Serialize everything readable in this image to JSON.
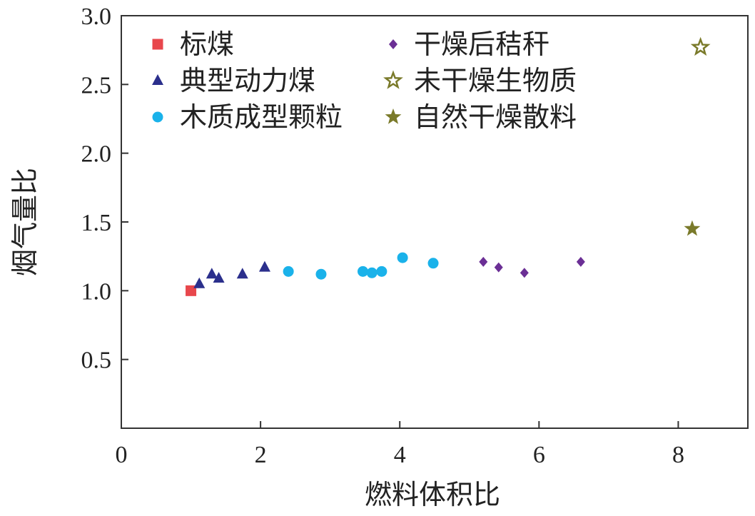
{
  "chart_data": {
    "type": "scatter",
    "xlabel": "燃料体积比",
    "ylabel": "烟气量比",
    "xlim": [
      0,
      9
    ],
    "ylim": [
      0,
      3.0
    ],
    "xticks": [
      "0",
      "2",
      "4",
      "6",
      "8"
    ],
    "xtick_values": [
      0,
      2,
      4,
      6,
      8
    ],
    "yticks": [
      "0.5",
      "1.0",
      "1.5",
      "2.0",
      "2.5",
      "3.0"
    ],
    "ytick_values": [
      0.5,
      1.0,
      1.5,
      2.0,
      2.5,
      3.0
    ],
    "grid": false,
    "legend_position": "top-left (two columns)",
    "series": [
      {
        "name": "标煤",
        "marker": "square",
        "color": "#e8474c",
        "points": [
          [
            1.0,
            1.0
          ]
        ]
      },
      {
        "name": "典型动力煤",
        "marker": "triangle",
        "color": "#2b2f8c",
        "points": [
          [
            1.12,
            1.05
          ],
          [
            1.3,
            1.12
          ],
          [
            1.4,
            1.09
          ],
          [
            1.74,
            1.12
          ],
          [
            2.06,
            1.17
          ]
        ]
      },
      {
        "name": "木质成型颗粒",
        "marker": "circle",
        "color": "#1ab2ea",
        "points": [
          [
            2.4,
            1.14
          ],
          [
            2.87,
            1.12
          ],
          [
            3.47,
            1.14
          ],
          [
            3.6,
            1.13
          ],
          [
            3.74,
            1.14
          ],
          [
            4.04,
            1.24
          ],
          [
            4.48,
            1.2
          ]
        ]
      },
      {
        "name": "干燥后秸秆",
        "marker": "diamond",
        "color": "#6b2f95",
        "points": [
          [
            5.2,
            1.21
          ],
          [
            5.42,
            1.17
          ],
          [
            5.79,
            1.13
          ],
          [
            6.6,
            1.21
          ]
        ]
      },
      {
        "name": "未干燥生物质",
        "marker": "star-open",
        "color": "#7a7a2a",
        "points": [
          [
            8.32,
            2.77
          ]
        ]
      },
      {
        "name": "自然干燥散料",
        "marker": "star-filled",
        "color": "#7a7a2a",
        "points": [
          [
            8.2,
            1.45
          ]
        ]
      }
    ]
  }
}
